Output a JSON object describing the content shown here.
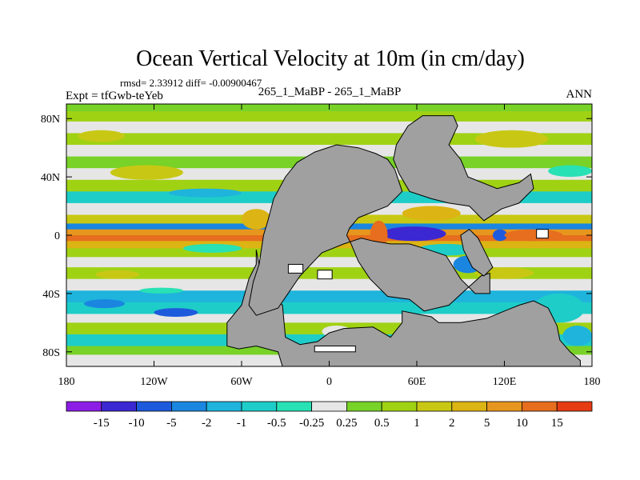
{
  "chart_data": {
    "type": "heatmap",
    "title": "Ocean Vertical Velocity at 10m (in cm/day)",
    "stats_text": "rmsd= 2.33912  diff= -0.00900467",
    "left_label": "Expt = tfGwb-teYeb",
    "center_label": "265_1_MaBP - 265_1_MaBP",
    "right_label": "ANN",
    "xlim": [
      -180,
      180
    ],
    "ylim": [
      -90,
      90
    ],
    "x_ticks": [
      {
        "value": -180,
        "label": "180"
      },
      {
        "value": -120,
        "label": "120W"
      },
      {
        "value": -60,
        "label": "60W"
      },
      {
        "value": 0,
        "label": "0"
      },
      {
        "value": 60,
        "label": "60E"
      },
      {
        "value": 120,
        "label": "120E"
      },
      {
        "value": 180,
        "label": "180"
      }
    ],
    "y_ticks": [
      {
        "value": 80,
        "label": "80N"
      },
      {
        "value": 40,
        "label": "40N"
      },
      {
        "value": 0,
        "label": "0"
      },
      {
        "value": -40,
        "label": "40S"
      },
      {
        "value": -80,
        "label": "80S"
      }
    ],
    "colorbar": {
      "colors": [
        "#8c1ee6",
        "#3c28d2",
        "#1e5adc",
        "#1a86e0",
        "#1eb4dc",
        "#1ecdc8",
        "#28e1b4",
        "#e6e6e6",
        "#78d228",
        "#a0d214",
        "#c8c814",
        "#dcb414",
        "#e6961e",
        "#e66e1e",
        "#e63c14"
      ],
      "labels": [
        "-15",
        "-10",
        "-5",
        "-2",
        "-1",
        "-0.5",
        "-0.25",
        "0.25",
        "0.5",
        "1",
        "2",
        "5",
        "10",
        "15"
      ]
    },
    "land_color": "#a0a0a0",
    "bands": [
      {
        "lat": [
          85,
          90
        ],
        "class": 8
      },
      {
        "lat": [
          78,
          85
        ],
        "class": 9
      },
      {
        "lat": [
          70,
          78
        ],
        "class": 7
      },
      {
        "lat": [
          62,
          70
        ],
        "class": 9
      },
      {
        "lat": [
          54,
          62
        ],
        "class": 7
      },
      {
        "lat": [
          46,
          54
        ],
        "class": 8
      },
      {
        "lat": [
          38,
          46
        ],
        "class": 7
      },
      {
        "lat": [
          30,
          38
        ],
        "class": 9
      },
      {
        "lat": [
          22,
          30
        ],
        "class": 5
      },
      {
        "lat": [
          14,
          22
        ],
        "class": 7
      },
      {
        "lat": [
          8,
          14
        ],
        "class": 10
      },
      {
        "lat": [
          4,
          8
        ],
        "class": 3
      },
      {
        "lat": [
          0,
          4
        ],
        "class": 12
      },
      {
        "lat": [
          -4,
          0
        ],
        "class": 13
      },
      {
        "lat": [
          -9,
          -4
        ],
        "class": 11
      },
      {
        "lat": [
          -15,
          -9
        ],
        "class": 9
      },
      {
        "lat": [
          -22,
          -15
        ],
        "class": 7
      },
      {
        "lat": [
          -30,
          -22
        ],
        "class": 9
      },
      {
        "lat": [
          -38,
          -30
        ],
        "class": 7
      },
      {
        "lat": [
          -46,
          -38
        ],
        "class": 4
      },
      {
        "lat": [
          -54,
          -46
        ],
        "class": 5
      },
      {
        "lat": [
          -60,
          -54
        ],
        "class": 7
      },
      {
        "lat": [
          -68,
          -60
        ],
        "class": 9
      },
      {
        "lat": [
          -76,
          -68
        ],
        "class": 5
      },
      {
        "lat": [
          -82,
          -76
        ],
        "class": 8
      },
      {
        "lat": [
          -90,
          -82
        ],
        "class": 7
      }
    ],
    "anomalies": [
      {
        "lon": [
          -172,
          -140
        ],
        "lat": [
          64,
          72
        ],
        "class": 10
      },
      {
        "lon": [
          -150,
          -100
        ],
        "lat": [
          38,
          48
        ],
        "class": 10
      },
      {
        "lon": [
          -110,
          -60
        ],
        "lat": [
          26,
          32
        ],
        "class": 4
      },
      {
        "lon": [
          -60,
          -40
        ],
        "lat": [
          4,
          18
        ],
        "class": 11
      },
      {
        "lon": [
          -100,
          -60
        ],
        "lat": [
          -12,
          -6
        ],
        "class": 6
      },
      {
        "lon": [
          -168,
          -140
        ],
        "lat": [
          -50,
          -44
        ],
        "class": 3
      },
      {
        "lon": [
          -120,
          -90
        ],
        "lat": [
          -56,
          -50
        ],
        "class": 2
      },
      {
        "lon": [
          -160,
          -130
        ],
        "lat": [
          -30,
          -24
        ],
        "class": 10
      },
      {
        "lon": [
          -130,
          -100
        ],
        "lat": [
          -40,
          -36
        ],
        "class": 6
      },
      {
        "lon": [
          -70,
          -50
        ],
        "lat": [
          -68,
          -60
        ],
        "class": 10
      },
      {
        "lon": [
          -5,
          15
        ],
        "lat": [
          -70,
          -62
        ],
        "class": 7
      },
      {
        "lon": [
          38,
          70
        ],
        "lat": [
          -1,
          3
        ],
        "class": 0
      },
      {
        "lon": [
          36,
          80
        ],
        "lat": [
          -4,
          6
        ],
        "class": 1
      },
      {
        "lon": [
          28,
          40
        ],
        "lat": [
          -10,
          10
        ],
        "class": 13
      },
      {
        "lon": [
          50,
          90
        ],
        "lat": [
          10,
          20
        ],
        "class": 11
      },
      {
        "lon": [
          60,
          100
        ],
        "lat": [
          -14,
          -6
        ],
        "class": 5
      },
      {
        "lon": [
          55,
          85
        ],
        "lat": [
          -40,
          -20
        ],
        "class": 4
      },
      {
        "lon": [
          85,
          105
        ],
        "lat": [
          -26,
          -14
        ],
        "class": 3
      },
      {
        "lon": [
          112,
          122
        ],
        "lat": [
          -4,
          4
        ],
        "class": 2
      },
      {
        "lon": [
          120,
          160
        ],
        "lat": [
          -4,
          4
        ],
        "class": 13
      },
      {
        "lon": [
          100,
          140
        ],
        "lat": [
          -30,
          -22
        ],
        "class": 10
      },
      {
        "lon": [
          140,
          175
        ],
        "lat": [
          -60,
          -40
        ],
        "class": 5
      },
      {
        "lon": [
          160,
          180
        ],
        "lat": [
          -76,
          -62
        ],
        "class": 4
      },
      {
        "lon": [
          100,
          150
        ],
        "lat": [
          60,
          72
        ],
        "class": 10
      },
      {
        "lon": [
          150,
          180
        ],
        "lat": [
          40,
          48
        ],
        "class": 6
      }
    ],
    "land": [
      [
        [
          -50,
          -10
        ],
        [
          -48,
          -20
        ],
        [
          -45,
          -30
        ],
        [
          -40,
          -40
        ],
        [
          -32,
          -48
        ],
        [
          -30,
          -70
        ],
        [
          -20,
          -75
        ],
        [
          -8,
          -73
        ],
        [
          0,
          -67
        ],
        [
          10,
          -64
        ],
        [
          30,
          -63
        ],
        [
          42,
          -70
        ],
        [
          50,
          -60
        ],
        [
          50,
          -52
        ],
        [
          70,
          -56
        ],
        [
          75,
          -60
        ],
        [
          90,
          -60
        ],
        [
          108,
          -57
        ],
        [
          120,
          -52
        ],
        [
          130,
          -48
        ],
        [
          140,
          -45
        ],
        [
          150,
          -50
        ],
        [
          156,
          -62
        ],
        [
          158,
          -72
        ],
        [
          165,
          -80
        ],
        [
          172,
          -86
        ],
        [
          172,
          -90
        ],
        [
          -32,
          -90
        ],
        [
          -35,
          -80
        ],
        [
          -50,
          -76
        ],
        [
          -62,
          -78
        ],
        [
          -70,
          -76
        ],
        [
          -70,
          -60
        ],
        [
          -60,
          -48
        ],
        [
          -55,
          -30
        ],
        [
          -50,
          -20
        ]
      ],
      [
        [
          -45,
          0
        ],
        [
          -42,
          10
        ],
        [
          -38,
          25
        ],
        [
          -30,
          40
        ],
        [
          -22,
          50
        ],
        [
          -10,
          57
        ],
        [
          5,
          62
        ],
        [
          20,
          60
        ],
        [
          32,
          56
        ],
        [
          40,
          52
        ],
        [
          45,
          45
        ],
        [
          50,
          30
        ],
        [
          40,
          20
        ],
        [
          20,
          12
        ],
        [
          14,
          5
        ],
        [
          12,
          0
        ],
        [
          15,
          -6
        ],
        [
          20,
          -18
        ],
        [
          28,
          -30
        ],
        [
          40,
          -42
        ],
        [
          55,
          -44
        ],
        [
          65,
          -52
        ],
        [
          82,
          -48
        ],
        [
          95,
          -36
        ],
        [
          104,
          -28
        ],
        [
          110,
          -26
        ],
        [
          110,
          -40
        ],
        [
          100,
          -40
        ],
        [
          90,
          -30
        ],
        [
          80,
          -14
        ],
        [
          68,
          -10
        ],
        [
          55,
          -6
        ],
        [
          42,
          -6
        ],
        [
          30,
          -4
        ],
        [
          22,
          -2
        ],
        [
          10,
          -6
        ],
        [
          -5,
          -12
        ],
        [
          -20,
          -28
        ],
        [
          -35,
          -50
        ],
        [
          -50,
          -55
        ],
        [
          -55,
          -48
        ],
        [
          -52,
          -32
        ],
        [
          -48,
          -20
        ]
      ],
      [
        [
          46,
          62
        ],
        [
          54,
          75
        ],
        [
          64,
          82
        ],
        [
          85,
          82
        ],
        [
          88,
          75
        ],
        [
          82,
          62
        ],
        [
          90,
          52
        ],
        [
          95,
          40
        ],
        [
          115,
          32
        ],
        [
          130,
          36
        ],
        [
          138,
          42
        ],
        [
          140,
          32
        ],
        [
          130,
          22
        ],
        [
          118,
          18
        ],
        [
          106,
          10
        ],
        [
          96,
          20
        ],
        [
          82,
          22
        ],
        [
          70,
          25
        ],
        [
          55,
          30
        ],
        [
          48,
          42
        ],
        [
          44,
          52
        ]
      ],
      [
        [
          96,
          4
        ],
        [
          102,
          -2
        ],
        [
          106,
          -10
        ],
        [
          112,
          -22
        ],
        [
          106,
          -28
        ],
        [
          98,
          -22
        ],
        [
          92,
          -10
        ],
        [
          90,
          0
        ]
      ]
    ],
    "islands": [
      {
        "lon": [
          -28,
          -18
        ],
        "lat": [
          -26,
          -20
        ]
      },
      {
        "lon": [
          -8,
          2
        ],
        "lat": [
          -30,
          -24
        ]
      },
      {
        "lon": [
          142,
          150
        ],
        "lat": [
          -2,
          4
        ]
      },
      {
        "lon": [
          -10,
          18
        ],
        "lat": [
          -80,
          -76
        ]
      }
    ]
  }
}
